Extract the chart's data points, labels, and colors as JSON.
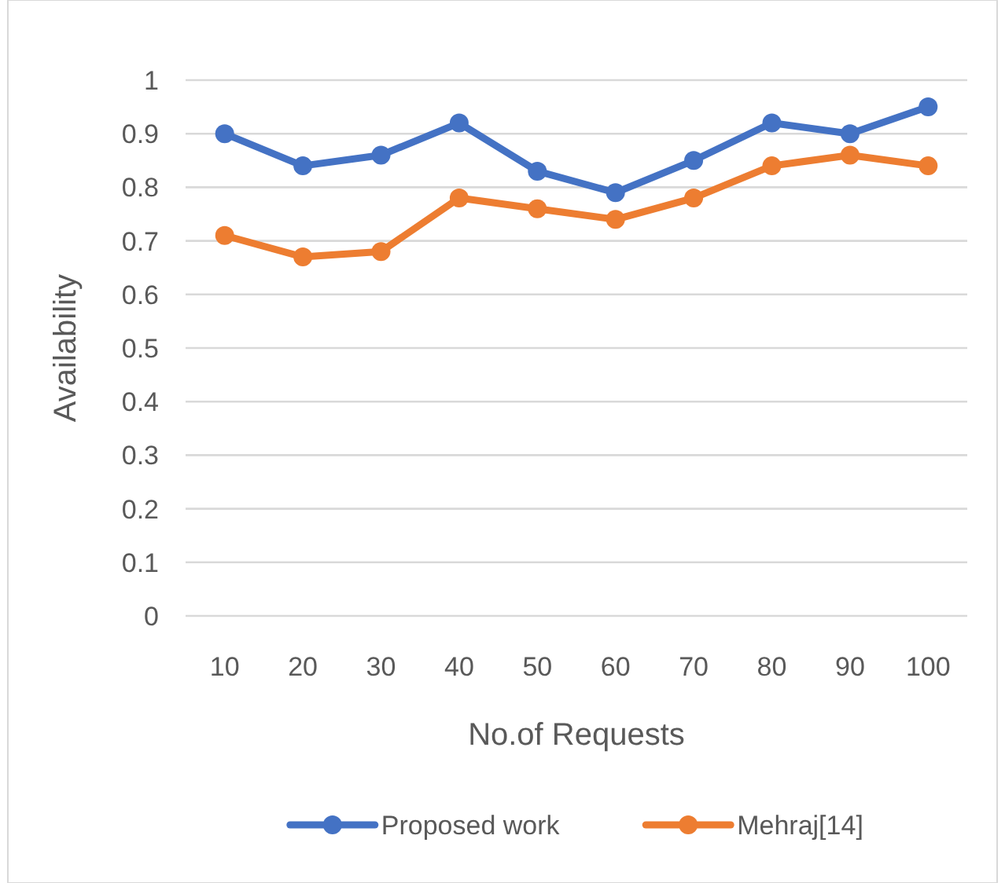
{
  "chart_data": {
    "type": "line",
    "xlabel": "No.of Requests",
    "ylabel": "Availability",
    "categories": [
      "10",
      "20",
      "30",
      "40",
      "50",
      "60",
      "70",
      "80",
      "90",
      "100"
    ],
    "series": [
      {
        "name": "Proposed work",
        "color": "#4472c4",
        "values": [
          0.9,
          0.84,
          0.86,
          0.92,
          0.83,
          0.79,
          0.85,
          0.92,
          0.9,
          0.95
        ]
      },
      {
        "name": "Mehraj[14]",
        "color": "#ed7d31",
        "values": [
          0.71,
          0.67,
          0.68,
          0.78,
          0.76,
          0.74,
          0.78,
          0.84,
          0.86,
          0.84
        ]
      }
    ],
    "ylim": [
      0,
      1
    ],
    "yticks": [
      0,
      0.1,
      0.2,
      0.3,
      0.4,
      0.5,
      0.6,
      0.7,
      0.8,
      0.9,
      1
    ],
    "grid": "y",
    "legend": "bottom",
    "marker": "circle",
    "line_style": "solid"
  }
}
